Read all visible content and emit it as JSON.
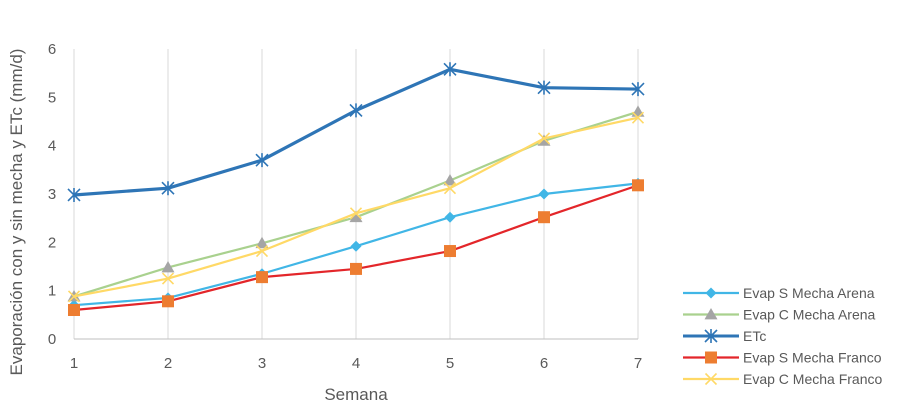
{
  "chart_data": {
    "type": "line",
    "title": "",
    "xlabel": "Semana",
    "ylabel": "Evaporación con y sin mecha y ETc (mm/d)",
    "x": [
      1,
      2,
      3,
      4,
      5,
      6,
      7
    ],
    "xlim": [
      1,
      7
    ],
    "ylim": [
      0,
      6
    ],
    "yticks": [
      0,
      1,
      2,
      3,
      4,
      5,
      6
    ],
    "grid": "vertical",
    "legend_position": "bottom-right",
    "series": [
      {
        "name": "Evap S Mecha Arena",
        "color": "#41b6e6",
        "marker": "diamond",
        "values": [
          0.7,
          0.85,
          1.35,
          1.92,
          2.52,
          3.0,
          3.22
        ]
      },
      {
        "name": "Evap C Mecha Arena",
        "color": "#a9d18e",
        "marker": "triangle",
        "values": [
          0.88,
          1.48,
          1.98,
          2.52,
          3.28,
          4.1,
          4.7
        ]
      },
      {
        "name": "ETc",
        "color": "#2e75b6",
        "marker": "asterisk",
        "values": [
          2.98,
          3.12,
          3.7,
          4.73,
          5.58,
          5.2,
          5.17
        ]
      },
      {
        "name": "Evap S Mecha Franco",
        "color": "#e3262a",
        "marker": "square",
        "values": [
          0.6,
          0.78,
          1.28,
          1.45,
          1.82,
          2.52,
          3.18
        ]
      },
      {
        "name": "Evap C Mecha Franco",
        "color": "#ffd966",
        "marker": "x",
        "values": [
          0.88,
          1.25,
          1.82,
          2.6,
          3.12,
          4.15,
          4.58
        ]
      }
    ]
  }
}
